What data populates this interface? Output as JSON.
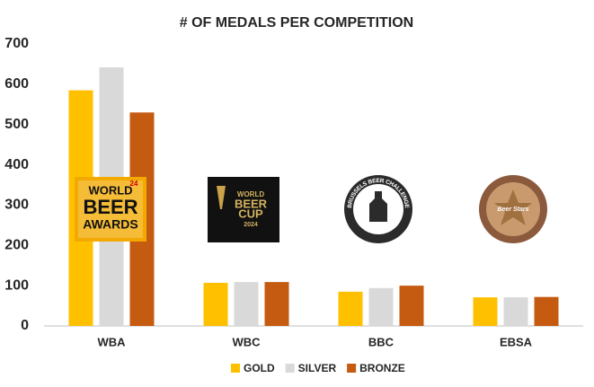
{
  "chart_data": {
    "type": "bar",
    "title": "# OF MEDALS PER COMPETITION",
    "categories": [
      "WBA",
      "WBC",
      "BBC",
      "EBSA"
    ],
    "series": [
      {
        "name": "GOLD",
        "color": "#FFC000",
        "values": [
          585,
          107,
          85,
          71
        ]
      },
      {
        "name": "SILVER",
        "color": "#D9D9D9",
        "values": [
          642,
          109,
          94,
          71
        ]
      },
      {
        "name": "BRONZE",
        "color": "#C55A11",
        "values": [
          530,
          109,
          100,
          72
        ]
      }
    ],
    "ylim": [
      0,
      700
    ],
    "yticks": [
      0,
      100,
      200,
      300,
      400,
      500,
      600,
      700
    ],
    "grid": false,
    "legend": "bottom",
    "logos": [
      {
        "lines": [
          "WORLD",
          "BEER",
          "AWARDS"
        ],
        "badge": "24"
      },
      {
        "lines": [
          "WORLD",
          "BEER",
          "CUP",
          "2024"
        ]
      },
      {
        "lines": [
          "BRUSSELS BEER CHALLENGE"
        ]
      },
      {
        "lines": [
          "Beer Stars"
        ]
      }
    ]
  }
}
